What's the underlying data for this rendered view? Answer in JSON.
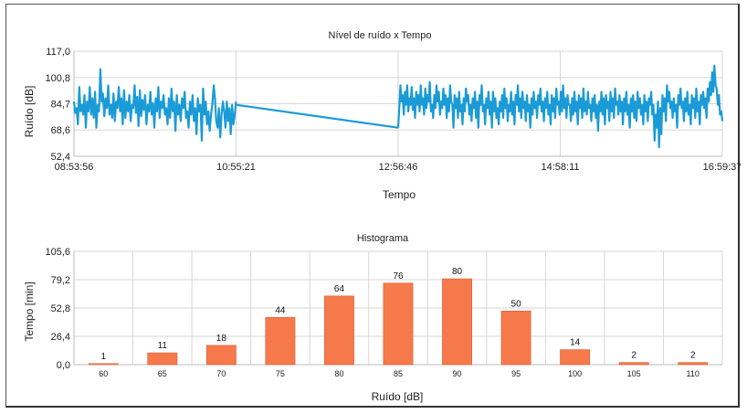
{
  "colors": {
    "line": "#1a9bd7",
    "bar": "#f5794a",
    "bar_stroke": "#d9623a"
  },
  "chart_data": [
    {
      "type": "line",
      "title": "Nível de ruído x Tempo",
      "xlabel": "Tempo",
      "ylabel": "Ruído [dB]",
      "ylim": [
        52.4,
        117.0
      ],
      "yticks": [
        "117,0",
        "100,8",
        "84,7",
        "68,6",
        "52,4"
      ],
      "yticks_values": [
        117.0,
        100.8,
        84.7,
        68.6,
        52.4
      ],
      "xticks": [
        "08:53:56",
        "10:55:21",
        "12:56:46",
        "14:58:11",
        "16:59:37"
      ],
      "grid": true,
      "series": [
        {
          "segments": [
            {
              "x_start": "08:53:56",
              "x_end": "10:55:21",
              "values": [
                86,
                79,
                82,
                72,
                95,
                80,
                84,
                78,
                90,
                70,
                86,
                80,
                95,
                78,
                88,
                76,
                92,
                70,
                84,
                80,
                106,
                86,
                91,
                77,
                88,
                82,
                96,
                78,
                84,
                76,
                91,
                74,
                86,
                82,
                95,
                80,
                88,
                72,
                93,
                76,
                86,
                80,
                90,
                74,
                84,
                82,
                96,
                79,
                89,
                71,
                93,
                77,
                87,
                81,
                90,
                72,
                84,
                80,
                92,
                78,
                85,
                70,
                88,
                80,
                95,
                76,
                86,
                82,
                90,
                78,
                82,
                72,
                88,
                76,
                94,
                80,
                86,
                68,
                90,
                78,
                84,
                74,
                88,
                82,
                92,
                76,
                80,
                70,
                86,
                78,
                90,
                74,
                82,
                66,
                88,
                80,
                84,
                62,
                94,
                78,
                86,
                72,
                80,
                68,
                78,
                84,
                96,
                88,
                74,
                70,
                82,
                64,
                78,
                86,
                80,
                70,
                86,
                74,
                82,
                66,
                84,
                72,
                78,
                86
              ]
            },
            {
              "x_start": "10:55:21",
              "x_end": "12:56:46",
              "values": [
                84,
                70
              ]
            },
            {
              "x_start": "12:56:46",
              "x_end": "16:59:37",
              "values": [
                70,
                82,
                96,
                86,
                90,
                78,
                92,
                84,
                96,
                80,
                88,
                84,
                95,
                81,
                88,
                76,
                92,
                84,
                90,
                80,
                96,
                84,
                88,
                78,
                94,
                82,
                90,
                86,
                98,
                80,
                84,
                76,
                90,
                82,
                96,
                86,
                92,
                78,
                86,
                82,
                94,
                84,
                90,
                76,
                88,
                80,
                96,
                86,
                84,
                70,
                90,
                82,
                88,
                76,
                92,
                80,
                84,
                72,
                88,
                80,
                94,
                86,
                90,
                78,
                84,
                74,
                88,
                82,
                92,
                76,
                86,
                70,
                90,
                84,
                96,
                80,
                84,
                72,
                88,
                82,
                92,
                78,
                86,
                70,
                92,
                80,
                88,
                76,
                82,
                72,
                86,
                80,
                90,
                76,
                94,
                82,
                88,
                74,
                84,
                80,
                92,
                78,
                86,
                72,
                90,
                84,
                96,
                80,
                88,
                76,
                92,
                82,
                86,
                74,
                90,
                80,
                84,
                70,
                88,
                78,
                92,
                82,
                86,
                76,
                90,
                84,
                94,
                80,
                86,
                74,
                88,
                82,
                92,
                78,
                84,
                72,
                90,
                80,
                88,
                76,
                94,
                84,
                86,
                78,
                92,
                80,
                96,
                82,
                88,
                76,
                90,
                84,
                84,
                74,
                88,
                78,
                92,
                80,
                86,
                72,
                90,
                82,
                88,
                76,
                94,
                80,
                86,
                78,
                92,
                82,
                84,
                74,
                88,
                80,
                90,
                76,
                84,
                68,
                86,
                80,
                92,
                78,
                88,
                72,
                90,
                82,
                86,
                74,
                92,
                80,
                88,
                76,
                94,
                84,
                86,
                78,
                90,
                80,
                86,
                72,
                88,
                80,
                92,
                78,
                84,
                70,
                88,
                80,
                90,
                76,
                86,
                74,
                92,
                82,
                88,
                78,
                84,
                72,
                90,
                80,
                86,
                74,
                88,
                84,
                92,
                78,
                84,
                62,
                78,
                70,
                86,
                58,
                82,
                66,
                90,
                80,
                88,
                74,
                96,
                86,
                92,
                82,
                86,
                76,
                88,
                80,
                84,
                70,
                90,
                84,
                94,
                82,
                86,
                74,
                88,
                80,
                92,
                78,
                84,
                72,
                90,
                82,
                88,
                76,
                94,
                80,
                86,
                72,
                90,
                84,
                92,
                82,
                88,
                76,
                94,
                86,
                98,
                90,
                104,
                92,
                108,
                96,
                94,
                84,
                90,
                78,
                80,
                74
              ]
            }
          ]
        }
      ]
    },
    {
      "type": "bar",
      "title": "Histograma",
      "xlabel": "Ruído [dB]",
      "ylabel": "Tempo [min]",
      "ylim": [
        0,
        105.6
      ],
      "yticks": [
        "105,6",
        "79,2",
        "52,8",
        "26,4",
        "0,0"
      ],
      "yticks_values": [
        105.6,
        79.2,
        52.8,
        26.4,
        0
      ],
      "categories": [
        "60",
        "65",
        "70",
        "75",
        "80",
        "85",
        "90",
        "95",
        "100",
        "105",
        "110"
      ],
      "values": [
        1,
        11,
        18,
        44,
        64,
        76,
        80,
        50,
        14,
        2,
        2
      ],
      "data_labels": [
        "1",
        "11",
        "18",
        "44",
        "64",
        "76",
        "80",
        "50",
        "14",
        "2",
        "2"
      ],
      "grid": true
    }
  ]
}
